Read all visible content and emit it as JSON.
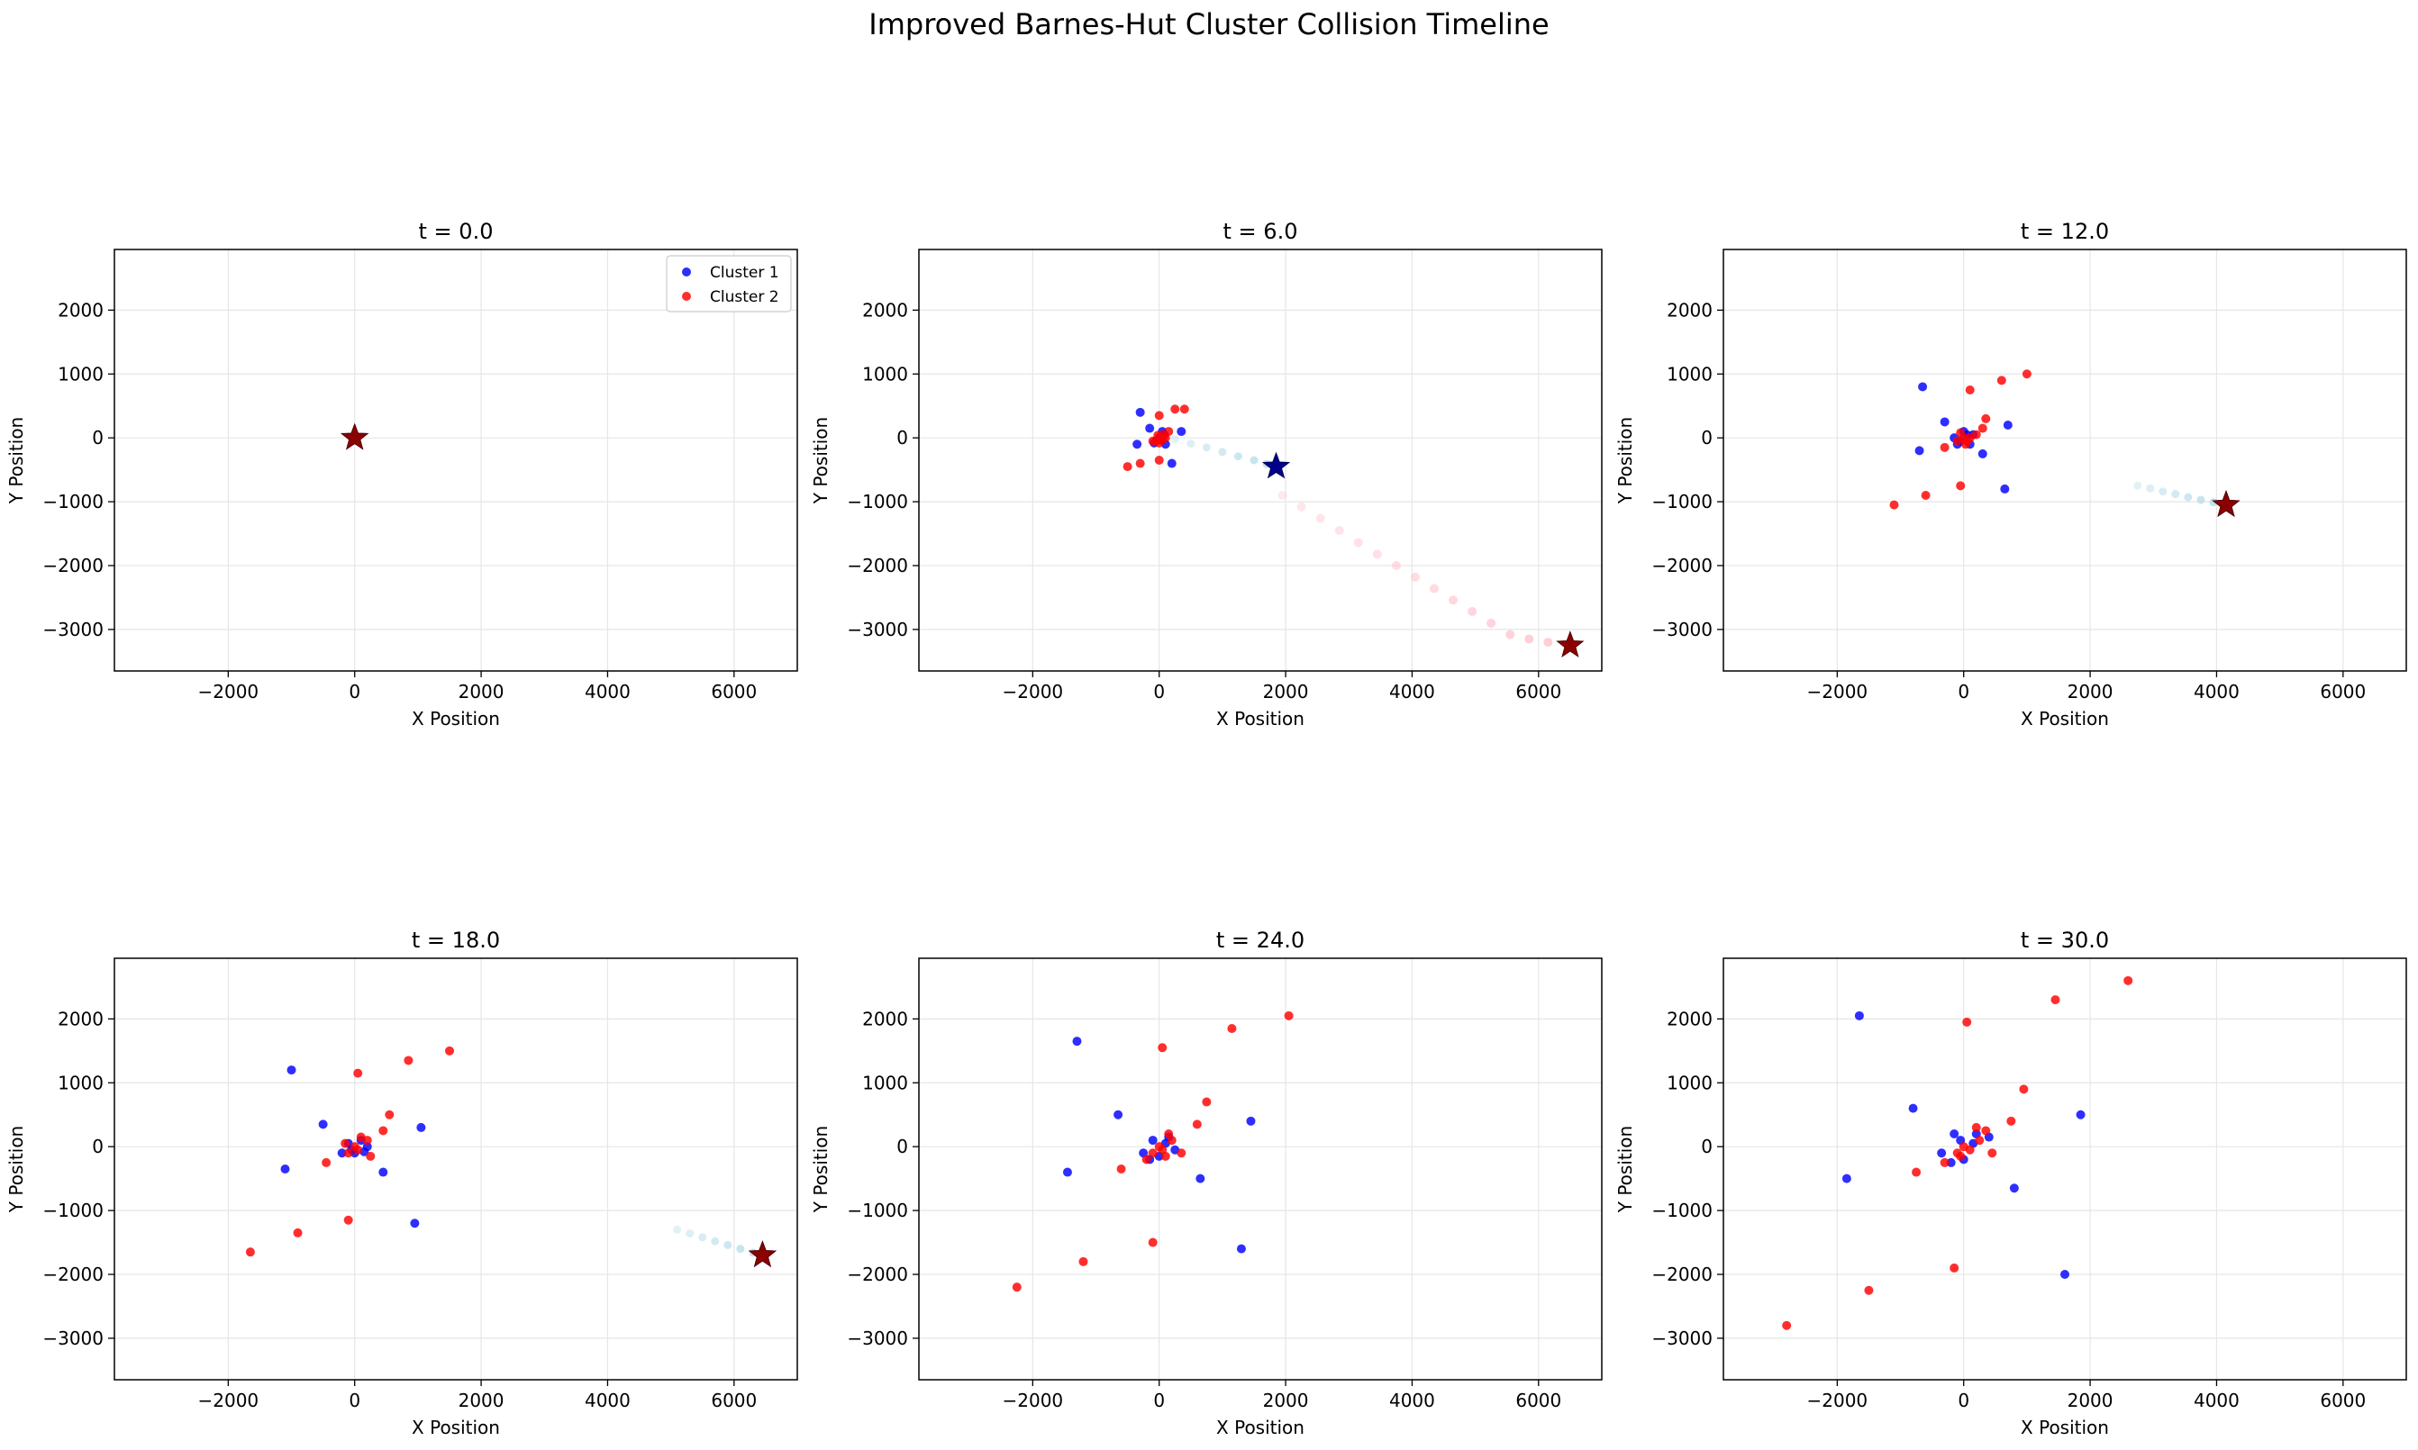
{
  "figure": {
    "suptitle": "Improved Barnes-Hut Cluster Collision Timeline"
  },
  "colors": {
    "cluster1": "#0000ff",
    "cluster2": "#ff0000",
    "cm1_star": "#00008b",
    "cm2_star": "#8b0000",
    "trail1": "#add8e6",
    "trail2": "#ffc0cb",
    "grid": "#e6e6e6"
  },
  "chart_data": [
    {
      "type": "scatter",
      "title": "t = 0.0",
      "xlabel": "X Position",
      "ylabel": "Y Position",
      "xlim": [
        -3800,
        7000
      ],
      "ylim": [
        -3650,
        2950
      ],
      "xticks": [
        -2000,
        0,
        2000,
        4000,
        6000
      ],
      "yticks": [
        -3000,
        -2000,
        -1000,
        0,
        1000,
        2000
      ],
      "grid": true,
      "legend": {
        "placement": "top-right",
        "entries": [
          "Cluster 1",
          "Cluster 2"
        ]
      },
      "series": [
        {
          "name": "Cluster 1",
          "points": [
            [
              0,
              0
            ],
            [
              5,
              5
            ],
            [
              -5,
              -3
            ]
          ]
        },
        {
          "name": "Cluster 2",
          "points": [
            [
              0,
              0
            ],
            [
              4,
              -4
            ],
            [
              -3,
              4
            ]
          ]
        }
      ],
      "centers_of_mass": {
        "cluster1": [
          0,
          0
        ],
        "cluster2": [
          0,
          0
        ]
      },
      "trails": {
        "cluster1": [],
        "cluster2": []
      }
    },
    {
      "type": "scatter",
      "title": "t = 6.0",
      "xlabel": "X Position",
      "ylabel": "Y Position",
      "xlim": [
        -3800,
        7000
      ],
      "ylim": [
        -3650,
        2950
      ],
      "xticks": [
        -2000,
        0,
        2000,
        4000,
        6000
      ],
      "yticks": [
        -3000,
        -2000,
        -1000,
        0,
        1000,
        2000
      ],
      "grid": true,
      "series": [
        {
          "name": "Cluster 1",
          "points": [
            [
              -300,
              400
            ],
            [
              -150,
              150
            ],
            [
              -50,
              -50
            ],
            [
              50,
              100
            ],
            [
              100,
              -100
            ],
            [
              -350,
              -100
            ],
            [
              350,
              100
            ],
            [
              200,
              -400
            ],
            [
              0,
              0
            ],
            [
              80,
              50
            ],
            [
              -80,
              -80
            ],
            [
              30,
              -30
            ]
          ]
        },
        {
          "name": "Cluster 2",
          "points": [
            [
              250,
              450
            ],
            [
              400,
              450
            ],
            [
              0,
              350
            ],
            [
              -100,
              -50
            ],
            [
              -500,
              -450
            ],
            [
              -300,
              -400
            ],
            [
              0,
              -350
            ],
            [
              100,
              0
            ],
            [
              50,
              50
            ],
            [
              -50,
              -50
            ],
            [
              150,
              100
            ],
            [
              0,
              -80
            ],
            [
              60,
              -20
            ],
            [
              -20,
              40
            ]
          ]
        }
      ],
      "centers_of_mass": {
        "cluster1": [
          1850,
          -450
        ],
        "cluster2": [
          6500,
          -3250
        ]
      },
      "trails": {
        "cluster1": [
          [
            250,
            -20
          ],
          [
            500,
            -90
          ],
          [
            750,
            -150
          ],
          [
            1000,
            -220
          ],
          [
            1250,
            -290
          ],
          [
            1500,
            -350
          ],
          [
            1700,
            -410
          ]
        ],
        "cluster2": [
          [
            1950,
            -900
          ],
          [
            2250,
            -1080
          ],
          [
            2550,
            -1260
          ],
          [
            2850,
            -1450
          ],
          [
            3150,
            -1640
          ],
          [
            3450,
            -1820
          ],
          [
            3750,
            -2000
          ],
          [
            4050,
            -2180
          ],
          [
            4350,
            -2360
          ],
          [
            4650,
            -2540
          ],
          [
            4950,
            -2720
          ],
          [
            5250,
            -2900
          ],
          [
            5550,
            -3080
          ],
          [
            5850,
            -3150
          ],
          [
            6150,
            -3200
          ]
        ]
      }
    },
    {
      "type": "scatter",
      "title": "t = 12.0",
      "xlabel": "X Position",
      "ylabel": "Y Position",
      "xlim": [
        -3800,
        7000
      ],
      "ylim": [
        -3650,
        2950
      ],
      "xticks": [
        -2000,
        0,
        2000,
        4000,
        6000
      ],
      "yticks": [
        -3000,
        -2000,
        -1000,
        0,
        1000,
        2000
      ],
      "grid": true,
      "series": [
        {
          "name": "Cluster 1",
          "points": [
            [
              -650,
              800
            ],
            [
              -300,
              250
            ],
            [
              -700,
              -200
            ],
            [
              300,
              -250
            ],
            [
              650,
              -800
            ],
            [
              700,
              200
            ],
            [
              -50,
              -50
            ],
            [
              50,
              50
            ],
            [
              -150,
              0
            ],
            [
              100,
              -100
            ],
            [
              0,
              100
            ],
            [
              150,
              50
            ],
            [
              -100,
              -100
            ]
          ]
        },
        {
          "name": "Cluster 2",
          "points": [
            [
              600,
              900
            ],
            [
              1000,
              1000
            ],
            [
              100,
              750
            ],
            [
              350,
              300
            ],
            [
              300,
              150
            ],
            [
              -300,
              -150
            ],
            [
              -600,
              -900
            ],
            [
              -1100,
              -1050
            ],
            [
              -50,
              -750
            ],
            [
              0,
              0
            ],
            [
              100,
              0
            ],
            [
              -100,
              -50
            ],
            [
              50,
              -50
            ],
            [
              200,
              50
            ],
            [
              -50,
              80
            ],
            [
              30,
              -100
            ]
          ]
        }
      ],
      "centers_of_mass": {
        "cluster1": [
          4150,
          -1050
        ],
        "cluster2": [
          4150,
          -1050
        ]
      },
      "trails": {
        "cluster1": [
          [
            2750,
            -750
          ],
          [
            2950,
            -790
          ],
          [
            3150,
            -840
          ],
          [
            3350,
            -880
          ],
          [
            3550,
            -930
          ],
          [
            3750,
            -970
          ],
          [
            3950,
            -1010
          ]
        ],
        "cluster2": []
      }
    },
    {
      "type": "scatter",
      "title": "t = 18.0",
      "xlabel": "X Position",
      "ylabel": "Y Position",
      "xlim": [
        -3800,
        7000
      ],
      "ylim": [
        -3650,
        2950
      ],
      "xticks": [
        -2000,
        0,
        2000,
        4000,
        6000
      ],
      "yticks": [
        -3000,
        -2000,
        -1000,
        0,
        1000,
        2000
      ],
      "grid": true,
      "series": [
        {
          "name": "Cluster 1",
          "points": [
            [
              -1000,
              1200
            ],
            [
              -500,
              350
            ],
            [
              -1100,
              -350
            ],
            [
              450,
              -400
            ],
            [
              950,
              -1200
            ],
            [
              1050,
              300
            ],
            [
              -200,
              -100
            ],
            [
              -100,
              50
            ],
            [
              0,
              -100
            ],
            [
              100,
              100
            ],
            [
              200,
              0
            ],
            [
              -50,
              -50
            ],
            [
              150,
              -80
            ]
          ]
        },
        {
          "name": "Cluster 2",
          "points": [
            [
              850,
              1350
            ],
            [
              1500,
              1500
            ],
            [
              50,
              1150
            ],
            [
              550,
              500
            ],
            [
              450,
              250
            ],
            [
              -450,
              -250
            ],
            [
              -900,
              -1350
            ],
            [
              -1650,
              -1650
            ],
            [
              -100,
              -1150
            ],
            [
              0,
              0
            ],
            [
              100,
              150
            ],
            [
              -100,
              -100
            ],
            [
              200,
              100
            ],
            [
              250,
              -150
            ],
            [
              50,
              -50
            ],
            [
              -150,
              50
            ]
          ]
        }
      ],
      "centers_of_mass": {
        "cluster1": [
          6450,
          -1700
        ],
        "cluster2": [
          6450,
          -1700
        ]
      },
      "trails": {
        "cluster1": [
          [
            5100,
            -1300
          ],
          [
            5300,
            -1360
          ],
          [
            5500,
            -1420
          ],
          [
            5700,
            -1480
          ],
          [
            5900,
            -1540
          ],
          [
            6100,
            -1600
          ],
          [
            6300,
            -1660
          ]
        ],
        "cluster2": []
      }
    },
    {
      "type": "scatter",
      "title": "t = 24.0",
      "xlabel": "X Position",
      "ylabel": "Y Position",
      "xlim": [
        -3800,
        7000
      ],
      "ylim": [
        -3650,
        2950
      ],
      "xticks": [
        -2000,
        0,
        2000,
        4000,
        6000
      ],
      "yticks": [
        -3000,
        -2000,
        -1000,
        0,
        1000,
        2000
      ],
      "grid": true,
      "series": [
        {
          "name": "Cluster 1",
          "points": [
            [
              -1300,
              1650
            ],
            [
              -650,
              500
            ],
            [
              -1450,
              -400
            ],
            [
              650,
              -500
            ],
            [
              1300,
              -1600
            ],
            [
              1450,
              400
            ],
            [
              -250,
              -100
            ],
            [
              -100,
              100
            ],
            [
              0,
              -150
            ],
            [
              100,
              50
            ],
            [
              250,
              -50
            ],
            [
              -150,
              -200
            ],
            [
              150,
              150
            ]
          ]
        },
        {
          "name": "Cluster 2",
          "points": [
            [
              1150,
              1850
            ],
            [
              2050,
              2050
            ],
            [
              50,
              1550
            ],
            [
              750,
              700
            ],
            [
              600,
              350
            ],
            [
              -600,
              -350
            ],
            [
              -1200,
              -1800
            ],
            [
              -2250,
              -2200
            ],
            [
              -100,
              -1500
            ],
            [
              0,
              0
            ],
            [
              150,
              200
            ],
            [
              -100,
              -100
            ],
            [
              200,
              100
            ],
            [
              350,
              -100
            ],
            [
              50,
              -50
            ],
            [
              -200,
              -200
            ],
            [
              100,
              -150
            ]
          ]
        }
      ],
      "centers_of_mass": {
        "cluster1": null,
        "cluster2": null
      },
      "trails": {
        "cluster1": [],
        "cluster2": []
      }
    },
    {
      "type": "scatter",
      "title": "t = 30.0",
      "xlabel": "X Position",
      "ylabel": "Y Position",
      "xlim": [
        -3800,
        7000
      ],
      "ylim": [
        -3650,
        2950
      ],
      "xticks": [
        -2000,
        0,
        2000,
        4000,
        6000
      ],
      "yticks": [
        -3000,
        -2000,
        -1000,
        0,
        1000,
        2000
      ],
      "grid": true,
      "series": [
        {
          "name": "Cluster 1",
          "points": [
            [
              -1650,
              2050
            ],
            [
              -800,
              600
            ],
            [
              -1850,
              -500
            ],
            [
              800,
              -650
            ],
            [
              1600,
              -2000
            ],
            [
              1850,
              500
            ],
            [
              -350,
              -100
            ],
            [
              -150,
              200
            ],
            [
              0,
              -200
            ],
            [
              150,
              50
            ],
            [
              400,
              150
            ],
            [
              -200,
              -250
            ],
            [
              200,
              200
            ],
            [
              -50,
              100
            ]
          ]
        },
        {
          "name": "Cluster 2",
          "points": [
            [
              1450,
              2300
            ],
            [
              2600,
              2600
            ],
            [
              50,
              1950
            ],
            [
              950,
              900
            ],
            [
              750,
              400
            ],
            [
              -750,
              -400
            ],
            [
              -1500,
              -2250
            ],
            [
              -2800,
              -2800
            ],
            [
              -150,
              -1900
            ],
            [
              0,
              0
            ],
            [
              200,
              300
            ],
            [
              -100,
              -100
            ],
            [
              250,
              100
            ],
            [
              450,
              -100
            ],
            [
              100,
              -50
            ],
            [
              -300,
              -250
            ],
            [
              350,
              250
            ],
            [
              -50,
              -150
            ]
          ]
        }
      ],
      "centers_of_mass": {
        "cluster1": null,
        "cluster2": null
      },
      "trails": {
        "cluster1": [],
        "cluster2": []
      }
    }
  ]
}
